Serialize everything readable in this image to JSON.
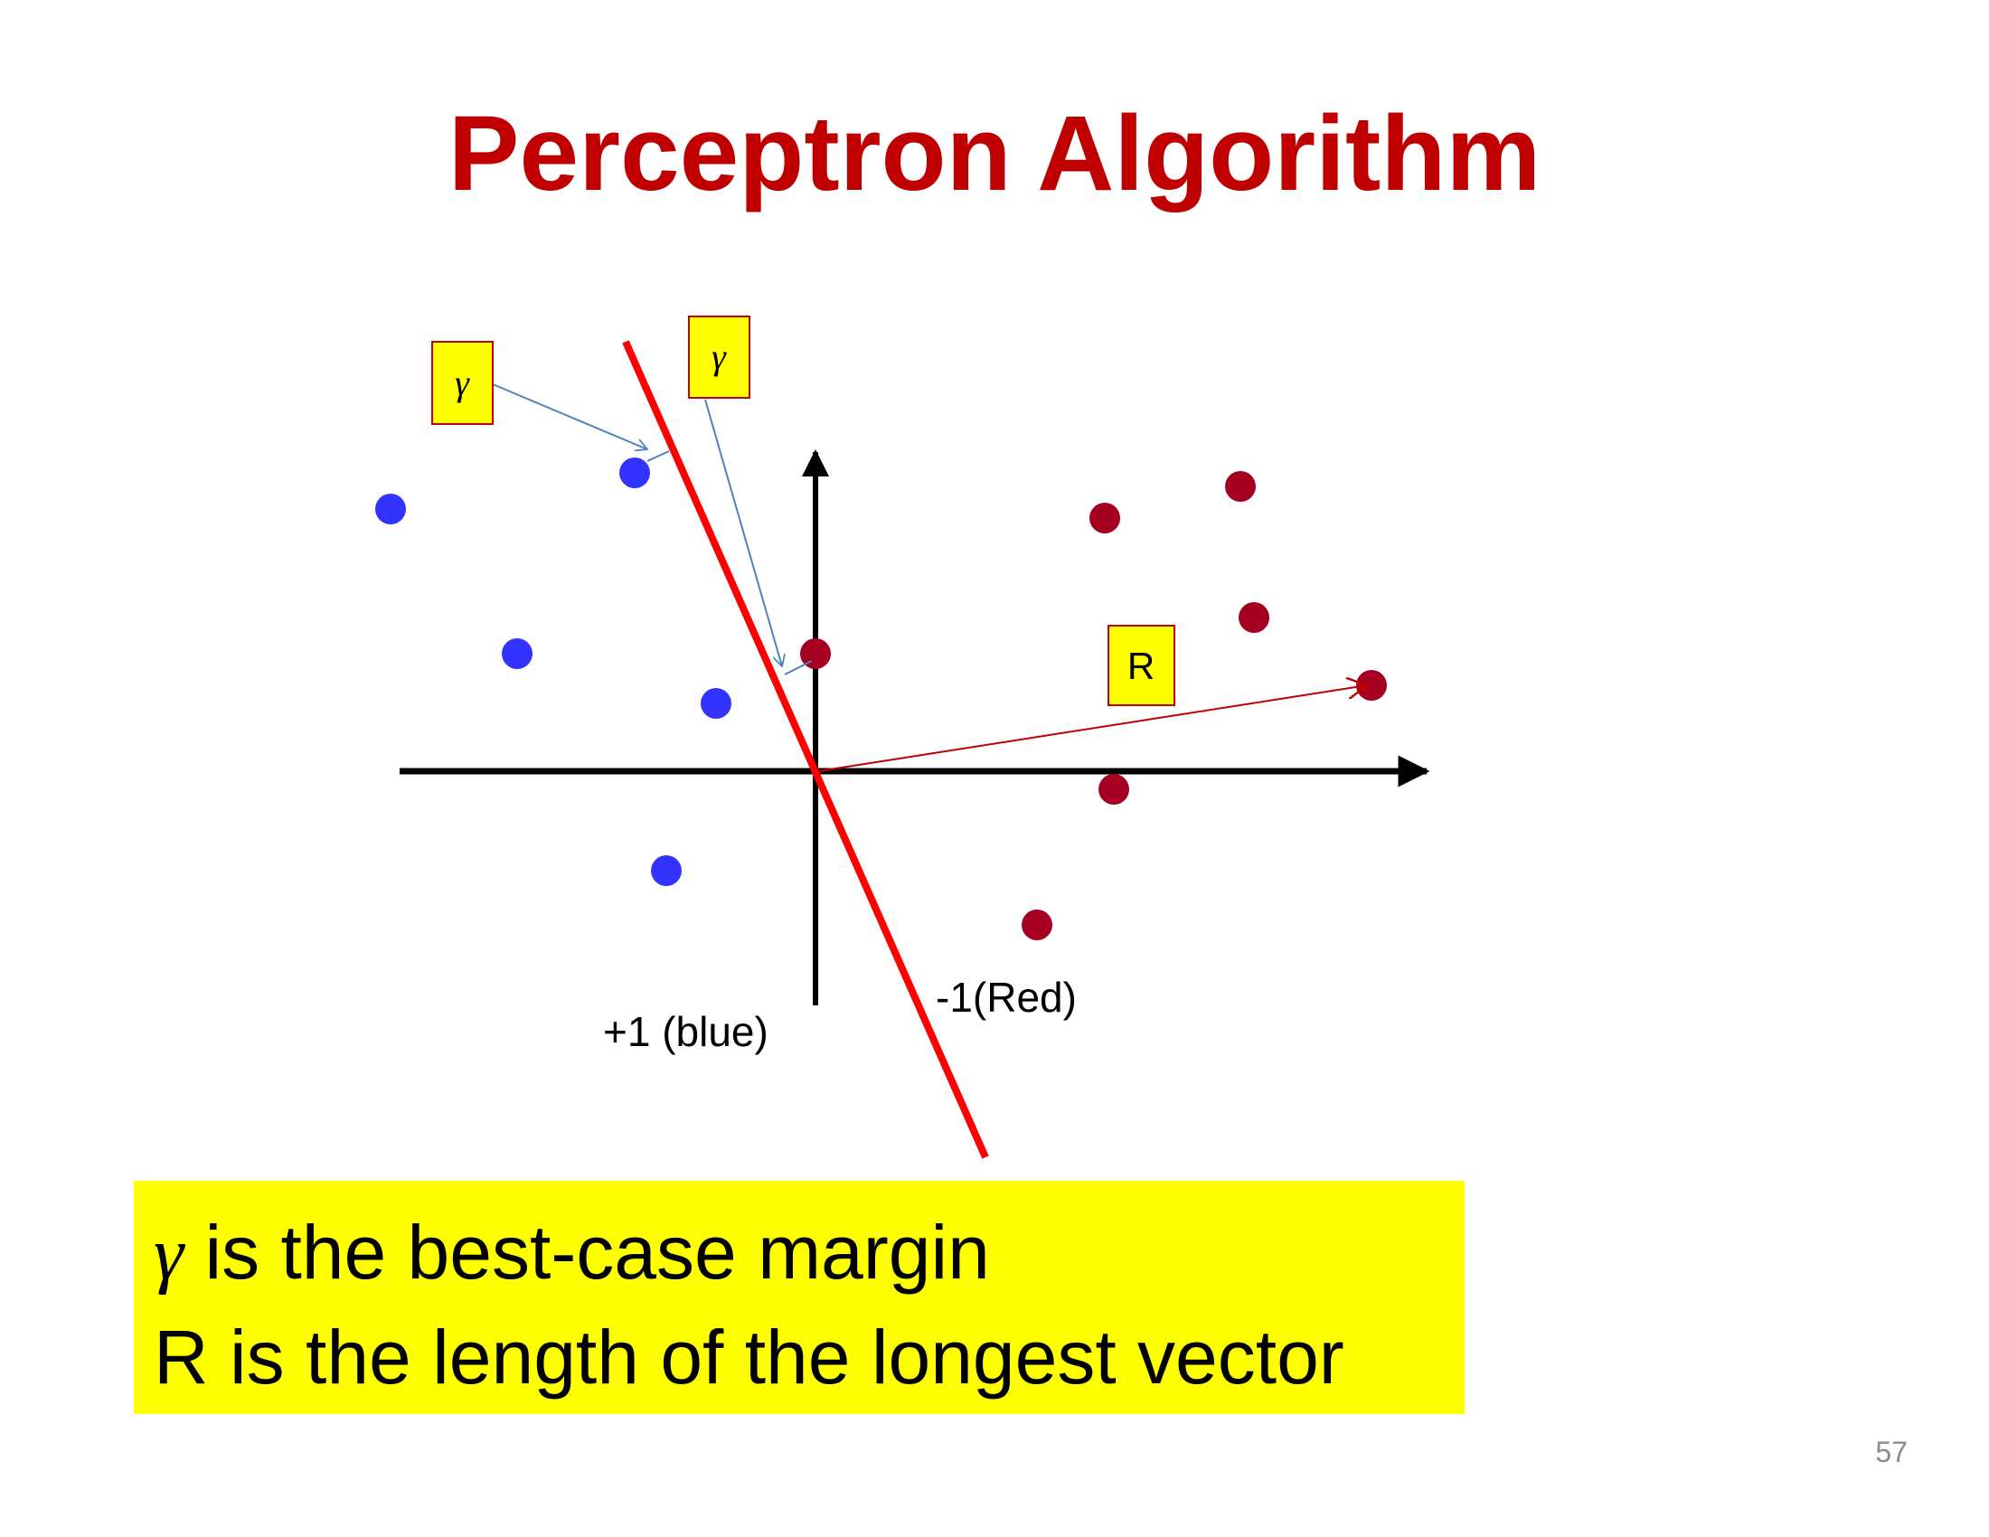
{
  "title": "Perceptron Algorithm",
  "colors": {
    "title": "#c00000",
    "positive_points": "#3333ff",
    "negative_points": "#a50021",
    "separator": "#ff0000",
    "axes": "#000000",
    "margin_arrow": "#4f81bd",
    "radius_arrow": "#c00000",
    "label_box_fill": "#ffff00",
    "label_box_border": "#c00000",
    "callout_fill": "#ffff00",
    "page_number": "#8c8c8c"
  },
  "diagram": {
    "separator_label": "",
    "class_labels": {
      "positive": "+1 (blue)",
      "negative": "-1(Red)"
    },
    "margin_labels": [
      "γ",
      "γ"
    ],
    "radius_label": "R",
    "positive_points": [
      {
        "x": -4.7,
        "y": 2.9
      },
      {
        "x": -2.0,
        "y": 3.3
      },
      {
        "x": -3.3,
        "y": 1.3
      },
      {
        "x": -1.1,
        "y": 0.75
      },
      {
        "x": -1.65,
        "y": -1.1
      }
    ],
    "negative_points": [
      {
        "x": 0.0,
        "y": 1.3
      },
      {
        "x": 3.2,
        "y": 2.8
      },
      {
        "x": 4.7,
        "y": 3.15
      },
      {
        "x": 4.85,
        "y": 1.7
      },
      {
        "x": 6.15,
        "y": 0.95
      },
      {
        "x": 3.3,
        "y": -0.2
      },
      {
        "x": 2.45,
        "y": -1.7
      }
    ]
  },
  "callout": {
    "line1_symbol": "γ",
    "line1_text": " is the best-case margin",
    "line2_text": "R is the length of the longest vector"
  },
  "page_number": "57"
}
